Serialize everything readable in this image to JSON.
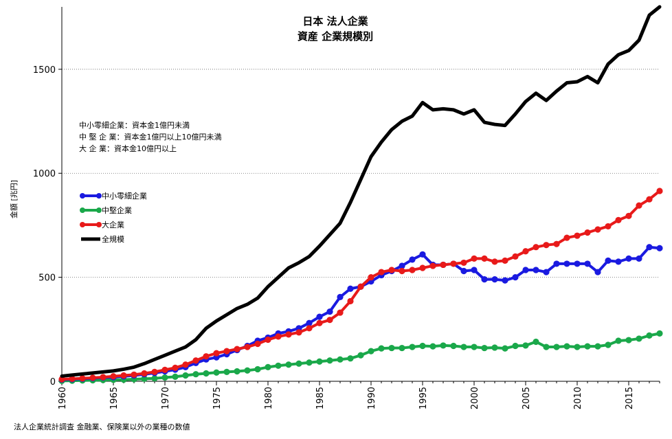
{
  "chart_data": {
    "type": "line",
    "title": [
      "日本 法人企業",
      "資産 企業規模別"
    ],
    "xlabel": "",
    "ylabel": "金額 [兆円]",
    "ylim": [
      0,
      1800
    ],
    "xlim": [
      1960,
      2018
    ],
    "yticks": [
      0,
      500,
      1000,
      1500
    ],
    "xticks": [
      1960,
      1965,
      1970,
      1975,
      1980,
      1985,
      1990,
      1995,
      2000,
      2005,
      2010,
      2015
    ],
    "grid": "horizontal-dotted",
    "notes": [
      "中小零細企業：資本金1億円未満",
      "中 堅 企 業：資本金1億円以上10億円未満",
      "大 企 業：資本金10億円以上"
    ],
    "source": "法人企業統計調査 金融業、保険業以外の業種の数値",
    "legend_position": "left-middle",
    "x": [
      1960,
      1961,
      1962,
      1963,
      1964,
      1965,
      1966,
      1967,
      1968,
      1969,
      1970,
      1971,
      1972,
      1973,
      1974,
      1975,
      1976,
      1977,
      1978,
      1979,
      1980,
      1981,
      1982,
      1983,
      1984,
      1985,
      1986,
      1987,
      1988,
      1989,
      1990,
      1991,
      1992,
      1993,
      1994,
      1995,
      1996,
      1997,
      1998,
      1999,
      2000,
      2001,
      2002,
      2003,
      2004,
      2005,
      2006,
      2007,
      2008,
      2009,
      2010,
      2011,
      2012,
      2013,
      2014,
      2015,
      2016,
      2017,
      2018
    ],
    "series": [
      {
        "name": "中小零細企業",
        "color": "#1a1ae0",
        "marker": true,
        "values": [
          8,
          10,
          12,
          15,
          18,
          20,
          24,
          28,
          34,
          40,
          48,
          56,
          68,
          88,
          105,
          115,
          130,
          150,
          170,
          195,
          210,
          230,
          240,
          255,
          280,
          310,
          335,
          405,
          445,
          455,
          480,
          510,
          530,
          555,
          585,
          610,
          560,
          560,
          565,
          530,
          535,
          490,
          490,
          485,
          500,
          535,
          535,
          525,
          565,
          565,
          565,
          565,
          525,
          580,
          575,
          590,
          590,
          645,
          640
        ]
      },
      {
        "name": "中堅企業",
        "color": "#1aa84a",
        "marker": true,
        "values": [
          2,
          3,
          4,
          5,
          6,
          7,
          8,
          10,
          12,
          14,
          18,
          22,
          28,
          34,
          38,
          42,
          45,
          48,
          52,
          58,
          68,
          75,
          80,
          85,
          90,
          95,
          100,
          105,
          110,
          125,
          145,
          158,
          160,
          160,
          165,
          170,
          168,
          172,
          170,
          165,
          165,
          160,
          162,
          158,
          170,
          172,
          190,
          165,
          165,
          168,
          165,
          168,
          168,
          175,
          195,
          198,
          205,
          220,
          230
        ]
      },
      {
        "name": "大企業",
        "color": "#e81a1a",
        "marker": true,
        "values": [
          10,
          12,
          14,
          17,
          20,
          24,
          28,
          32,
          38,
          45,
          55,
          65,
          80,
          100,
          120,
          135,
          145,
          155,
          165,
          180,
          200,
          215,
          225,
          235,
          255,
          280,
          295,
          330,
          385,
          455,
          500,
          525,
          535,
          530,
          535,
          545,
          555,
          560,
          565,
          570,
          590,
          590,
          575,
          580,
          600,
          625,
          645,
          655,
          660,
          690,
          700,
          715,
          730,
          745,
          775,
          795,
          845,
          875,
          915
        ]
      },
      {
        "name": "全規模",
        "color": "#000000",
        "marker": false,
        "values": [
          25,
          30,
          35,
          40,
          45,
          50,
          58,
          68,
          85,
          105,
          125,
          145,
          165,
          200,
          255,
          290,
          320,
          350,
          370,
          400,
          455,
          500,
          545,
          570,
          600,
          650,
          705,
          760,
          860,
          970,
          1080,
          1150,
          1210,
          1250,
          1275,
          1340,
          1305,
          1310,
          1305,
          1285,
          1305,
          1245,
          1235,
          1230,
          1285,
          1345,
          1385,
          1350,
          1395,
          1435,
          1440,
          1465,
          1435,
          1525,
          1570,
          1590,
          1640,
          1760,
          1800
        ]
      }
    ]
  }
}
